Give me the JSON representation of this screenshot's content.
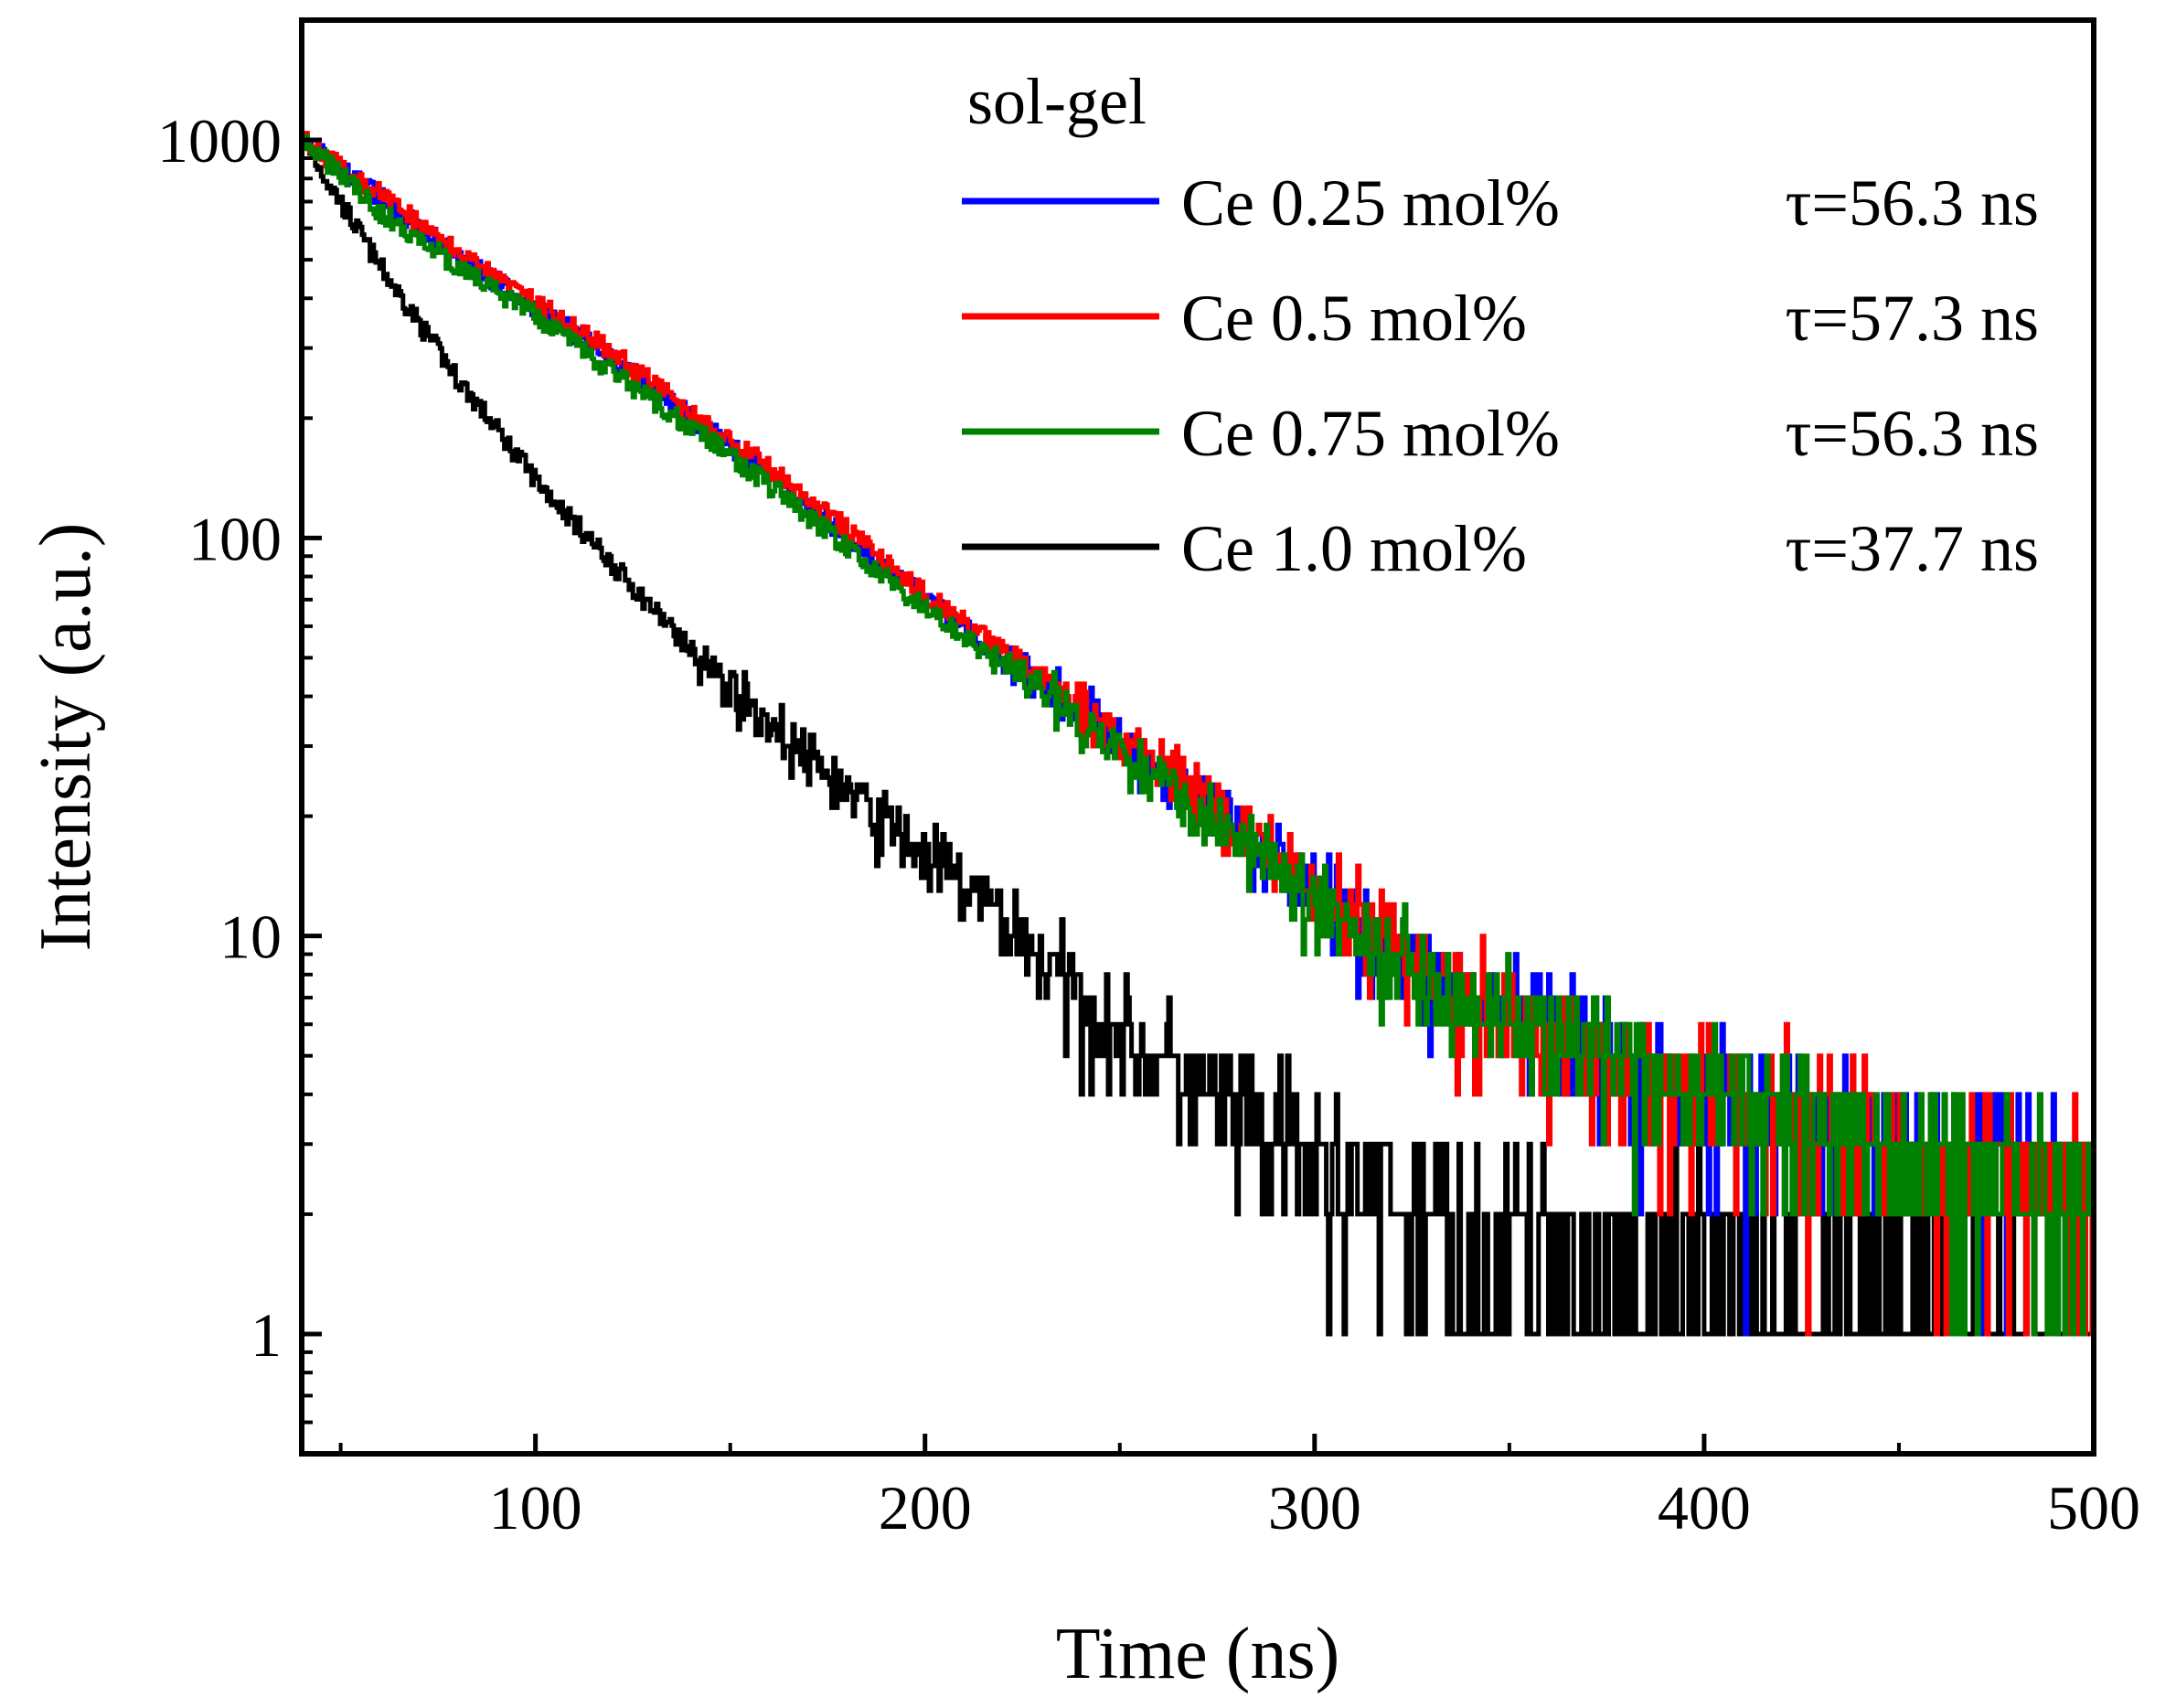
{
  "chart_data": {
    "type": "line",
    "xlabel": "Time (ns)",
    "ylabel": "Intensity (a.u.)",
    "xscale": "linear",
    "yscale": "log",
    "xlim": [
      40,
      500
    ],
    "ylim": [
      0.5,
      2000
    ],
    "xticks": [
      100,
      200,
      300,
      400,
      500
    ],
    "xtick_labels": [
      "100",
      "200",
      "300",
      "400",
      "500"
    ],
    "yticks": [
      1,
      10,
      100,
      1000
    ],
    "ytick_labels": [
      "1",
      "10",
      "100",
      "1000"
    ],
    "legend_title": "sol-gel",
    "legend_position": "top-right",
    "series": [
      {
        "name": "Ce 0.25 mol%",
        "lifetime": "τ=56.3 ns",
        "color": "#0000ff",
        "x": [
          40,
          60,
          80,
          100,
          120,
          140,
          160,
          180,
          200,
          220,
          240,
          260,
          280,
          300,
          320,
          340,
          360,
          380,
          400,
          420,
          440,
          460,
          480,
          500
        ],
        "y": [
          1000,
          720,
          510,
          380,
          280,
          200,
          145,
          100,
          70,
          50,
          36,
          26,
          19,
          13,
          9,
          7,
          5.5,
          4.5,
          4,
          3.5,
          3,
          2.8,
          2.5,
          2.2
        ]
      },
      {
        "name": "Ce 0.5 mol%",
        "lifetime": "τ=57.3 ns",
        "color": "#ff0000",
        "x": [
          40,
          60,
          80,
          100,
          120,
          140,
          160,
          180,
          200,
          220,
          240,
          260,
          280,
          300,
          320,
          340,
          360,
          380,
          400,
          420,
          440,
          460,
          480,
          500
        ],
        "y": [
          1000,
          730,
          520,
          390,
          290,
          205,
          150,
          105,
          72,
          52,
          37,
          27,
          19,
          13.5,
          9.5,
          7,
          5.5,
          4.5,
          4,
          3.5,
          3,
          2.8,
          2.5,
          2.2
        ]
      },
      {
        "name": "Ce 0.75 mol%",
        "lifetime": "τ=56.3 ns",
        "color": "#008000",
        "x": [
          40,
          60,
          80,
          100,
          120,
          140,
          160,
          180,
          200,
          220,
          240,
          260,
          280,
          300,
          320,
          340,
          360,
          380,
          400,
          420,
          440,
          460,
          480,
          500
        ],
        "y": [
          1000,
          660,
          480,
          360,
          260,
          190,
          135,
          95,
          66,
          48,
          35,
          25,
          18,
          12.5,
          9,
          7,
          5.5,
          4.5,
          4,
          3.5,
          3,
          2.8,
          2.5,
          2.2
        ]
      },
      {
        "name": "Ce 1.0 mol%",
        "lifetime": "τ=37.7 ns",
        "color": "#000000",
        "x": [
          40,
          60,
          80,
          100,
          120,
          140,
          160,
          180,
          200,
          220,
          240,
          260,
          280,
          300,
          320,
          340,
          360,
          380,
          400,
          420,
          440,
          460,
          480,
          500
        ],
        "y": [
          1000,
          480,
          250,
          140,
          85,
          52,
          34,
          23,
          16,
          11,
          7,
          4.8,
          3.5,
          2.6,
          2.1,
          1.8,
          1.6,
          1.5,
          1.4,
          1.3,
          1.3,
          1.2,
          1.2,
          1.2
        ]
      }
    ]
  }
}
